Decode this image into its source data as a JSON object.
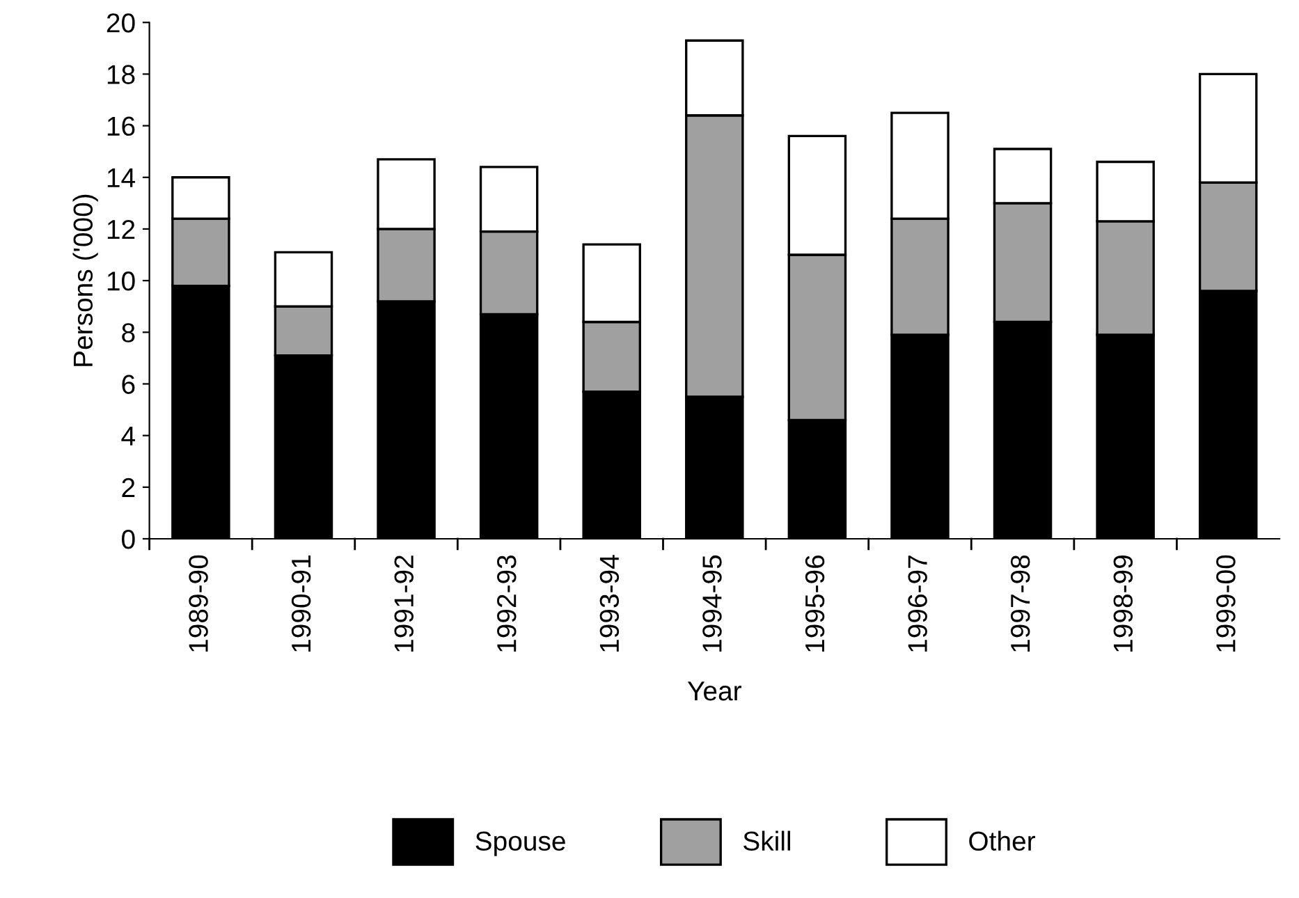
{
  "chart_data": {
    "type": "bar",
    "stacked": true,
    "xlabel": "Year",
    "ylabel": "Persons ('000)",
    "categories": [
      "1989-90",
      "1990-91",
      "1991-92",
      "1992-93",
      "1993-94",
      "1994-95",
      "1995-96",
      "1996-97",
      "1997-98",
      "1998-99",
      "1999-00"
    ],
    "series": [
      {
        "name": "Spouse",
        "color": "#000000",
        "values": [
          9.8,
          7.1,
          9.2,
          8.7,
          5.7,
          5.5,
          4.6,
          7.9,
          8.4,
          7.9,
          9.6
        ]
      },
      {
        "name": "Skill",
        "color": "#a0a0a0",
        "values": [
          2.6,
          1.9,
          2.8,
          3.2,
          2.7,
          10.9,
          6.4,
          4.5,
          4.6,
          4.4,
          4.2
        ]
      },
      {
        "name": "Other",
        "color": "#ffffff",
        "values": [
          1.6,
          2.1,
          2.7,
          2.5,
          3.0,
          2.9,
          4.6,
          4.1,
          2.1,
          2.3,
          4.2
        ]
      }
    ],
    "ylim": [
      0,
      20
    ],
    "yticks": [
      0,
      2,
      4,
      6,
      8,
      10,
      12,
      14,
      16,
      18,
      20
    ],
    "grid": false,
    "legend": "bottom"
  }
}
